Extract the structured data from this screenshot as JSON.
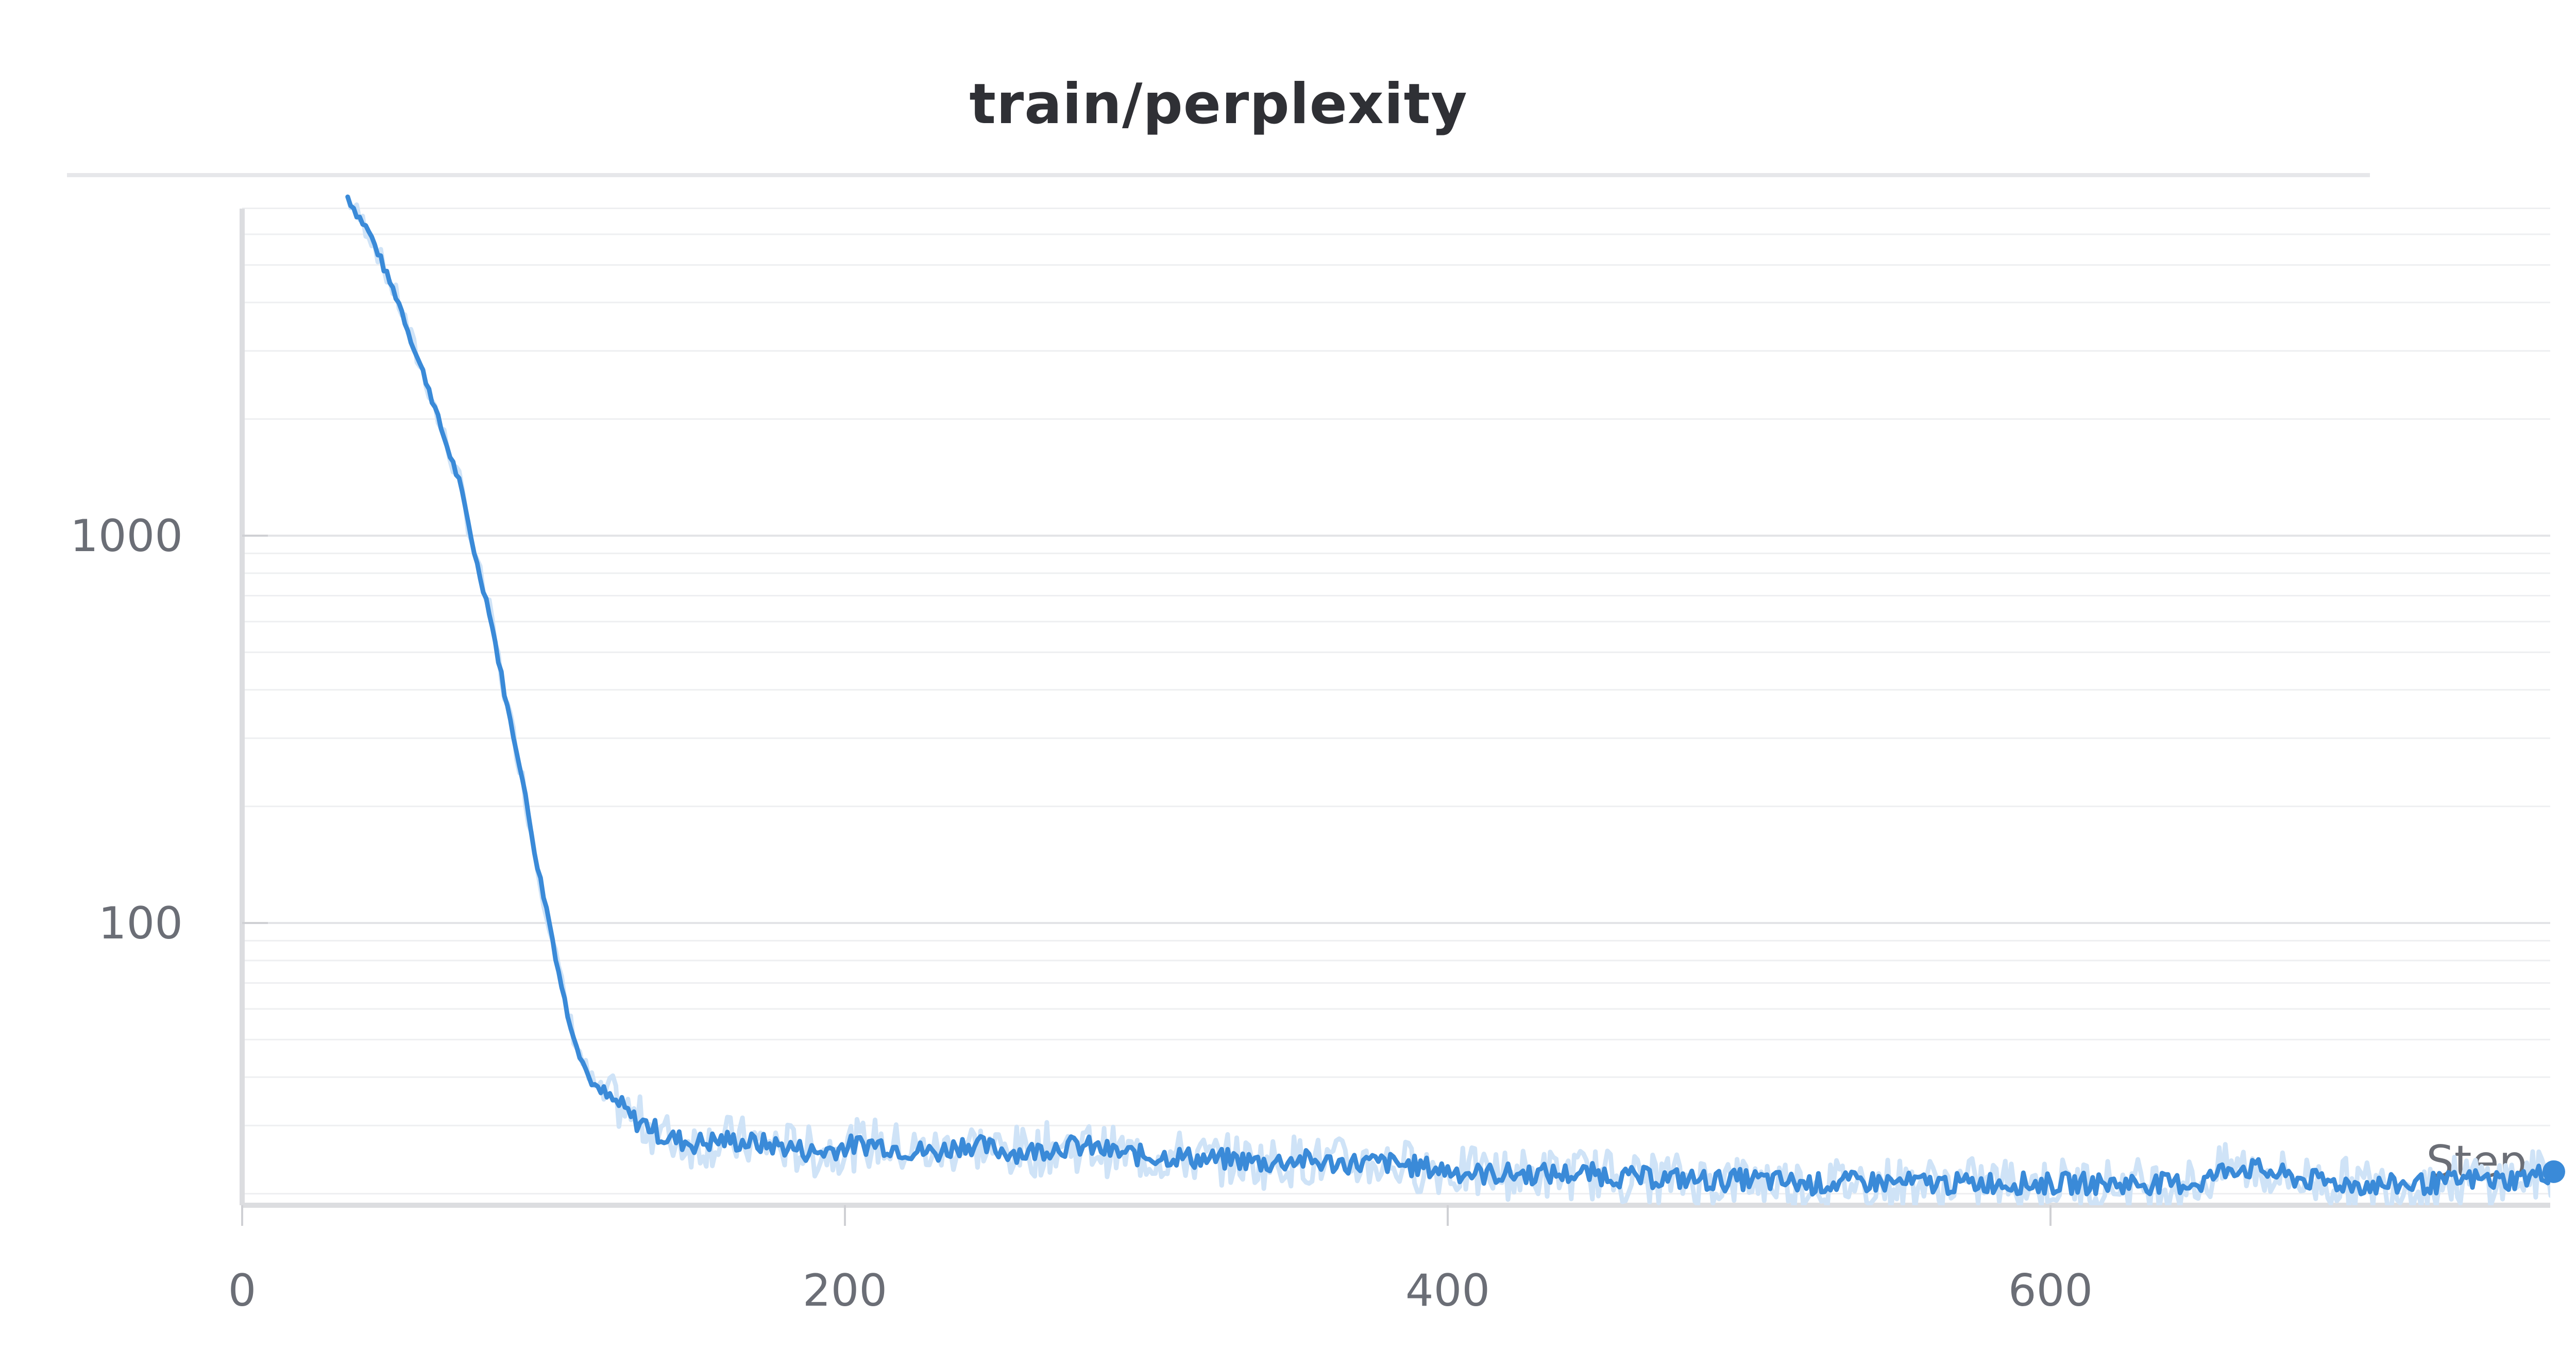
{
  "chart_data": {
    "type": "line",
    "title": "train/perplexity",
    "xlabel": "Step",
    "ylabel": "",
    "x_ticks": [
      "0",
      "200",
      "400",
      "600"
    ],
    "y_ticks": [
      "100",
      "1000"
    ],
    "y_scale": "log",
    "xlim": [
      0,
      770
    ],
    "ylim": [
      20,
      7500
    ],
    "grid": true,
    "legend": "none",
    "color": "#3a8ad8",
    "raw_color": "#cfe3f7",
    "series": [
      {
        "values": [
          [
            35,
            7500
          ],
          [
            38,
            6800
          ],
          [
            42,
            6100
          ],
          [
            45,
            5400
          ],
          [
            48,
            4700
          ],
          [
            52,
            4000
          ],
          [
            55,
            3400
          ],
          [
            58,
            2900
          ],
          [
            62,
            2400
          ],
          [
            65,
            2000
          ],
          [
            68,
            1700
          ],
          [
            72,
            1380
          ],
          [
            75,
            1080
          ],
          [
            78,
            840
          ],
          [
            82,
            640
          ],
          [
            85,
            480
          ],
          [
            88,
            360
          ],
          [
            92,
            260
          ],
          [
            95,
            190
          ],
          [
            98,
            140
          ],
          [
            102,
            100
          ],
          [
            105,
            75
          ],
          [
            108,
            58
          ],
          [
            112,
            46
          ],
          [
            115,
            40
          ],
          [
            118,
            37
          ],
          [
            122,
            35
          ],
          [
            125,
            34
          ],
          [
            130,
            31
          ],
          [
            135,
            30
          ],
          [
            140,
            28
          ],
          [
            150,
            27
          ],
          [
            160,
            27.5
          ],
          [
            170,
            27
          ],
          [
            180,
            26.5
          ],
          [
            190,
            25.5
          ],
          [
            200,
            26.5
          ],
          [
            210,
            27
          ],
          [
            220,
            26
          ],
          [
            230,
            25.5
          ],
          [
            240,
            27
          ],
          [
            250,
            26
          ],
          [
            260,
            25.5
          ],
          [
            270,
            26.5
          ],
          [
            280,
            26.5
          ],
          [
            290,
            25.5
          ],
          [
            300,
            25
          ],
          [
            310,
            25
          ],
          [
            320,
            24.5
          ],
          [
            330,
            24.5
          ],
          [
            340,
            24
          ],
          [
            350,
            24.5
          ],
          [
            360,
            24
          ],
          [
            370,
            24
          ],
          [
            380,
            24
          ],
          [
            390,
            23.5
          ],
          [
            400,
            23
          ],
          [
            410,
            22.5
          ],
          [
            420,
            22.5
          ],
          [
            430,
            22.5
          ],
          [
            440,
            22.5
          ],
          [
            450,
            22.5
          ],
          [
            460,
            22
          ],
          [
            470,
            22
          ],
          [
            480,
            21.8
          ],
          [
            490,
            21.6
          ],
          [
            500,
            21.8
          ],
          [
            510,
            21.5
          ],
          [
            520,
            21.2
          ],
          [
            530,
            21.3
          ],
          [
            540,
            21.5
          ],
          [
            550,
            21.3
          ],
          [
            560,
            21.3
          ],
          [
            570,
            21.2
          ],
          [
            580,
            21.4
          ],
          [
            590,
            21.3
          ],
          [
            600,
            21.2
          ],
          [
            610,
            21.3
          ],
          [
            620,
            21.2
          ],
          [
            630,
            21.3
          ],
          [
            640,
            21.2
          ],
          [
            650,
            21.4
          ],
          [
            660,
            23.5
          ],
          [
            670,
            23
          ],
          [
            680,
            22
          ],
          [
            690,
            21.5
          ],
          [
            700,
            21.2
          ],
          [
            710,
            21
          ],
          [
            720,
            21.2
          ],
          [
            730,
            21.3
          ],
          [
            740,
            21.8
          ],
          [
            750,
            21.6
          ],
          [
            760,
            22.2
          ],
          [
            767,
            22.8
          ]
        ]
      }
    ]
  }
}
